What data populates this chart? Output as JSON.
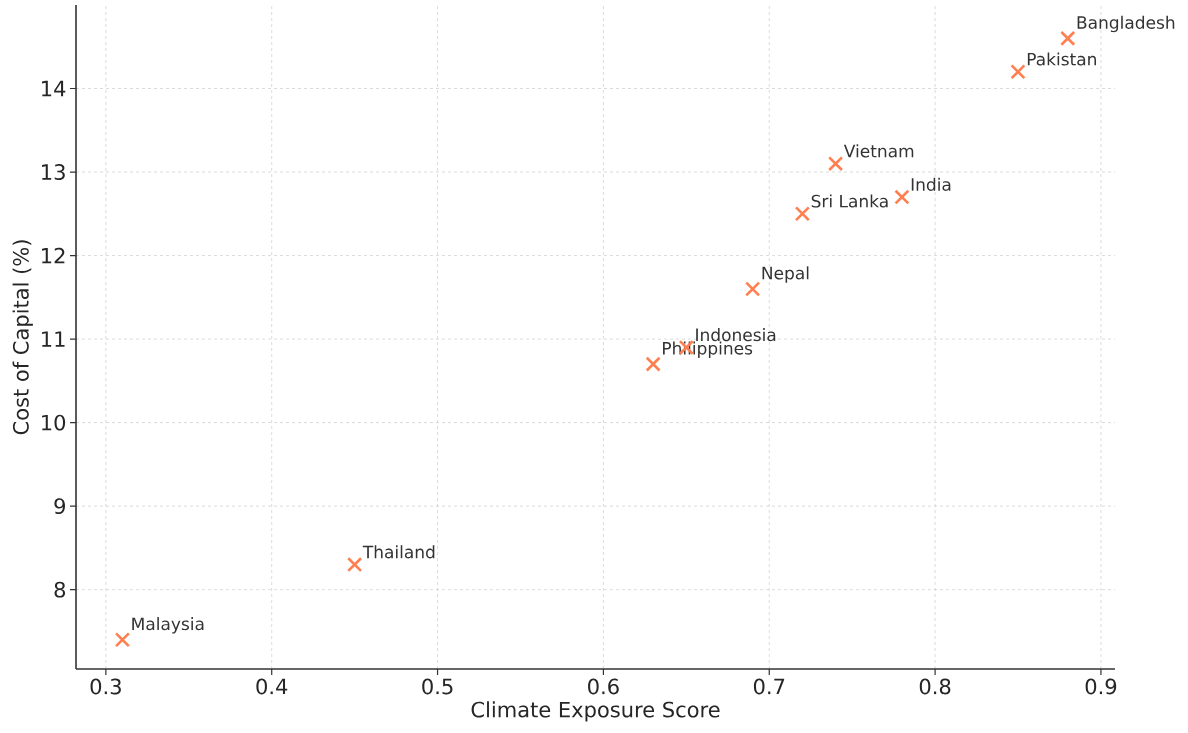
{
  "chart_data": {
    "type": "scatter",
    "xlabel": "Climate Exposure Score",
    "ylabel": "Cost of Capital (%)",
    "x": [
      0.31,
      0.45,
      0.63,
      0.65,
      0.69,
      0.72,
      0.74,
      0.78,
      0.85,
      0.88
    ],
    "series": [
      {
        "color": "#ff7f50",
        "values": [
          7.4,
          8.3,
          10.7,
          10.9,
          11.6,
          12.5,
          13.1,
          12.7,
          14.2,
          14.6
        ]
      }
    ],
    "annotations": [
      {
        "text": "Malaysia",
        "x": 0.31,
        "y": 7.4
      },
      {
        "text": "Thailand",
        "x": 0.45,
        "y": 8.3
      },
      {
        "text": "Philippines",
        "x": 0.63,
        "y": 10.7
      },
      {
        "text": "Indonesia",
        "x": 0.65,
        "y": 10.9
      },
      {
        "text": "Nepal",
        "x": 0.69,
        "y": 11.6
      },
      {
        "text": "Sri Lanka",
        "x": 0.72,
        "y": 12.5
      },
      {
        "text": "Vietnam",
        "x": 0.74,
        "y": 13.1
      },
      {
        "text": "India",
        "x": 0.78,
        "y": 12.7
      },
      {
        "text": "Pakistan",
        "x": 0.85,
        "y": 14.2
      },
      {
        "text": "Bangladesh",
        "x": 0.88,
        "y": 14.6
      }
    ],
    "xlim": [
      0.282,
      0.9085
    ],
    "ylim": [
      7.05,
      15.0
    ],
    "xticks": [
      0.3,
      0.4,
      0.5,
      0.6,
      0.7,
      0.8,
      0.9
    ],
    "yticks": [
      8,
      9,
      10,
      11,
      12,
      13,
      14
    ],
    "grid": true,
    "marker": "cross",
    "line_style": "none"
  }
}
